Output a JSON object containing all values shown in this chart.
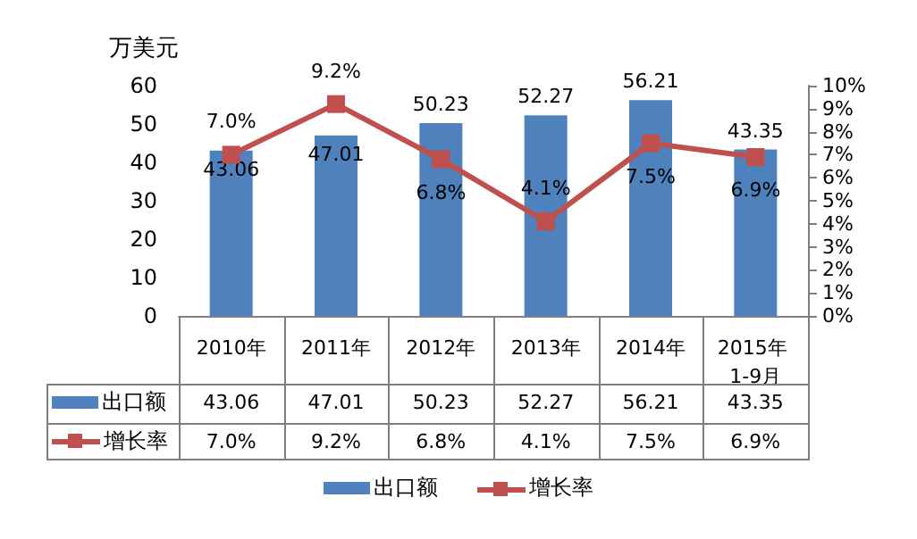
{
  "chart_data": {
    "type": "bar",
    "ylabel": "万美元",
    "categories": [
      "2010年",
      "2011年",
      "2012年",
      "2013年",
      "2014年",
      "2015年 1-9月"
    ],
    "series": [
      {
        "name": "出口额",
        "color": "#4f81bd",
        "values": [
          43.06,
          47.01,
          50.23,
          52.27,
          56.21,
          43.35
        ],
        "value_labels": [
          "43.06",
          "47.01",
          "50.23",
          "52.27",
          "56.21",
          "43.35"
        ]
      },
      {
        "name": "增长率",
        "type": "line",
        "axis": "y2",
        "color": "#c0504d",
        "values": [
          7.0,
          9.2,
          6.8,
          4.1,
          7.5,
          6.9
        ],
        "value_labels": [
          "7.0%",
          "9.2%",
          "6.8%",
          "4.1%",
          "7.5%",
          "6.9%"
        ]
      }
    ],
    "ylim": [
      0,
      60
    ],
    "yticks": [
      0,
      10,
      20,
      30,
      40,
      50,
      60
    ],
    "y2lim": [
      0,
      10
    ],
    "y2ticks": [
      {
        "value": 0,
        "label": "0%"
      },
      {
        "value": 1,
        "label": "1%"
      },
      {
        "value": 2,
        "label": "2%"
      },
      {
        "value": 3,
        "label": "3%"
      },
      {
        "value": 4,
        "label": "4%"
      },
      {
        "value": 5,
        "label": "5%"
      },
      {
        "value": 6,
        "label": "6%"
      },
      {
        "value": 7,
        "label": "7%"
      },
      {
        "value": 8,
        "label": "8%"
      },
      {
        "value": 9,
        "label": "9%"
      },
      {
        "value": 10,
        "label": "10%"
      }
    ],
    "grid": false,
    "legend": "bottom",
    "marker": "square",
    "line_style": "solid"
  }
}
